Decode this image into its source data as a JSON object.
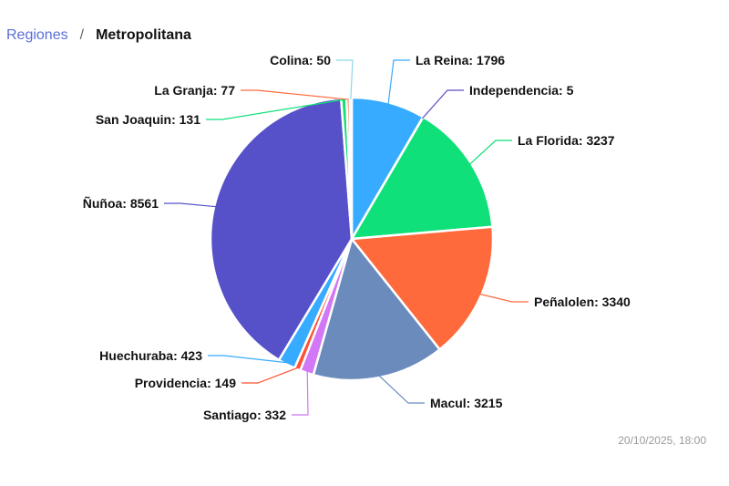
{
  "breadcrumb": {
    "parent": "Regiones",
    "separator": "/",
    "current": "Metropolitana"
  },
  "timestamp": "20/10/2025, 18:00",
  "chart_data": {
    "type": "pie",
    "slices": [
      {
        "label": "La Reina",
        "value": 1796,
        "color": "#36abff"
      },
      {
        "label": "Independencia",
        "value": 5,
        "color": "#5a4fc4"
      },
      {
        "label": "La Florida",
        "value": 3237,
        "color": "#0fe07a"
      },
      {
        "label": "Peñalolen",
        "value": 3340,
        "color": "#ff6a3d"
      },
      {
        "label": "Macul",
        "value": 3215,
        "color": "#6b8bbd"
      },
      {
        "label": "Santiago",
        "value": 332,
        "color": "#d277f5"
      },
      {
        "label": "Providencia",
        "value": 149,
        "color": "#ff5033"
      },
      {
        "label": "Huechuraba",
        "value": 423,
        "color": "#36abff"
      },
      {
        "label": "Ñuñoa",
        "value": 8561,
        "color": "#5651c8"
      },
      {
        "label": "San Joaquin",
        "value": 131,
        "color": "#0fe07a"
      },
      {
        "label": "La Granja",
        "value": 77,
        "color": "#ff6a3d"
      },
      {
        "label": "Colina",
        "value": 50,
        "color": "#8ad8e8"
      }
    ]
  }
}
